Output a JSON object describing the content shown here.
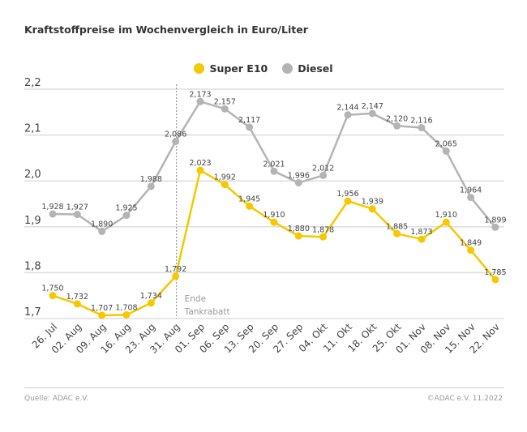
{
  "chart_data": {
    "type": "line",
    "title": "Kraftstoffpreise im Wochenvergleich in Euro/Liter",
    "categories": [
      "26. Jul",
      "02. Aug",
      "09. Aug",
      "16. Aug",
      "23. Aug",
      "31. Aug",
      "01. Sep",
      "06. Sep",
      "13. Sep",
      "20. Sep",
      "27. Sep",
      "04. Okt",
      "11. Okt",
      "18. Okt",
      "25. Okt",
      "01. Nov",
      "08. Nov",
      "15. Nov",
      "22. Nov"
    ],
    "series": [
      {
        "name": "Super E10",
        "color": "#f5c800",
        "values": [
          1.75,
          1.732,
          1.707,
          1.708,
          1.734,
          1.792,
          2.023,
          1.992,
          1.945,
          1.91,
          1.88,
          1.878,
          1.956,
          1.939,
          1.885,
          1.873,
          1.91,
          1.849,
          1.785
        ]
      },
      {
        "name": "Diesel",
        "color": "#b4b4b4",
        "values": [
          1.928,
          1.927,
          1.89,
          1.925,
          1.988,
          2.086,
          2.173,
          2.157,
          2.117,
          2.021,
          1.996,
          2.012,
          2.144,
          2.147,
          2.12,
          2.116,
          2.065,
          1.964,
          1.899
        ]
      }
    ],
    "ylim": [
      1.7,
      2.2
    ],
    "yticks": [
      "2,2",
      "2,1",
      "2,0",
      "1,9",
      "1,8",
      "1,7"
    ],
    "grid": true,
    "legend": "top-center",
    "annotation": {
      "after_category": "31. Aug",
      "text_line1": "Ende",
      "text_line2": "Tankrabatt"
    }
  },
  "footer": {
    "source": "Quelle: ADAC e.V.",
    "copyright": "©ADAC e.V.  11.2022"
  }
}
